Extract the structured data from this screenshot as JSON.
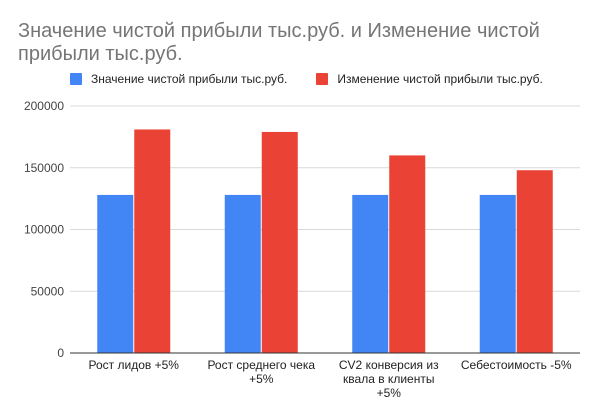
{
  "chart_data": {
    "type": "bar",
    "title": "Значение чистой прибыли тыс.руб. и Изменение чистой\nприбыли тыс.руб.",
    "xlabel": "",
    "ylabel": "",
    "categories": [
      [
        "Рост лидов +5%"
      ],
      [
        "Рост среднего чека",
        "+5%"
      ],
      [
        "CV2 конверсия из",
        "квала в клиенты",
        "+5%"
      ],
      [
        "Себестоимость -5%"
      ]
    ],
    "series": [
      {
        "name": "Значение чистой прибыли тыс.руб.",
        "color": "#4285f4",
        "values": [
          128000,
          128000,
          128000,
          128000
        ]
      },
      {
        "name": "Изменение чистой прибыли тыс.руб.",
        "color": "#ea4335",
        "values": [
          181000,
          179000,
          160000,
          148000
        ]
      }
    ],
    "ylim": [
      0,
      200000
    ],
    "yticks": [
      "0",
      "50000",
      "100000",
      "150000",
      "200000"
    ],
    "grid": true,
    "legend_position": "top-left"
  }
}
